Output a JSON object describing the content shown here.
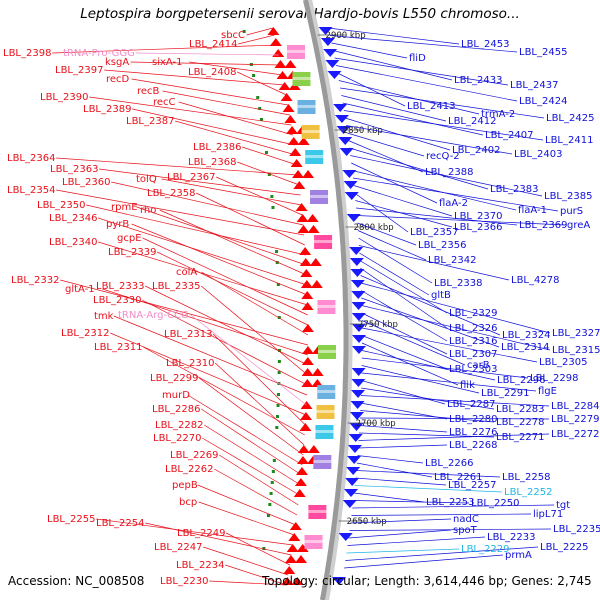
{
  "title": "Leptospira borgpetersenii serovar Hardjo-bovis L550 chromoso...",
  "footer": {
    "accession": "Accession: NC_008508",
    "summary": "Topology: circular; Length: 3,614,446 bp; Genes: 2,745"
  },
  "colors": {
    "left_label": "#e8101a",
    "right_label": "#1010d8",
    "rna_label": "#f08cc8",
    "rna_label_right": "#20b8e8",
    "backbone": "#9a9a9a",
    "forward_gene": "#ff0000",
    "reverse_gene": "#1a1aff",
    "tick": "#1a8a1a"
  },
  "ticks": [
    {
      "label": "2900 kbp"
    },
    {
      "label": "2850 kbp"
    },
    {
      "label": "2800 kbp"
    },
    {
      "label": "2750 kbp"
    },
    {
      "label": "2700 kbp"
    },
    {
      "label": "2650 kbp"
    }
  ],
  "left_labels": [
    {
      "text": "sbcC"
    },
    {
      "text": "LBL_2414"
    },
    {
      "text": "LBL_2398"
    },
    {
      "text": "tRNA-Pro-GGG",
      "rna": true
    },
    {
      "text": "ksgA"
    },
    {
      "text": "sixA-1"
    },
    {
      "text": "LBL_2397"
    },
    {
      "text": "LBL_2408"
    },
    {
      "text": "recD"
    },
    {
      "text": "recB"
    },
    {
      "text": "LBL_2390"
    },
    {
      "text": "recC"
    },
    {
      "text": "LBL_2389"
    },
    {
      "text": "LBL_2387"
    },
    {
      "text": "LBL_2386"
    },
    {
      "text": "LBL_2364"
    },
    {
      "text": "LBL_2368"
    },
    {
      "text": "LBL_2363"
    },
    {
      "text": "tolQ"
    },
    {
      "text": "LBL_2367"
    },
    {
      "text": "LBL_2360"
    },
    {
      "text": "LBL_2354"
    },
    {
      "text": "LBL_2358"
    },
    {
      "text": "LBL_2350"
    },
    {
      "text": "rpmE"
    },
    {
      "text": "rho"
    },
    {
      "text": "LBL_2346"
    },
    {
      "text": "pyrB"
    },
    {
      "text": "LBL_2340"
    },
    {
      "text": "gcpE"
    },
    {
      "text": "LBL_2339"
    },
    {
      "text": "colA"
    },
    {
      "text": "LBL_2332"
    },
    {
      "text": "gltA-1"
    },
    {
      "text": "LBL_2333"
    },
    {
      "text": "LBL_2335"
    },
    {
      "text": "LBL_2330"
    },
    {
      "text": "tmk"
    },
    {
      "text": "tRNA-Arg-CCG",
      "rna": true
    },
    {
      "text": "LBL_2312"
    },
    {
      "text": "LBL_2313"
    },
    {
      "text": "LBL_2311"
    },
    {
      "text": "LBL_2310"
    },
    {
      "text": "LBL_2299"
    },
    {
      "text": "murD"
    },
    {
      "text": "LBL_2286"
    },
    {
      "text": "LBL_2282"
    },
    {
      "text": "LBL_2270"
    },
    {
      "text": "LBL_2269"
    },
    {
      "text": "LBL_2262"
    },
    {
      "text": "pepB"
    },
    {
      "text": "bcp"
    },
    {
      "text": "LBL_2255"
    },
    {
      "text": "LBL_2254"
    },
    {
      "text": "LBL_2249"
    },
    {
      "text": "LBL_2247"
    },
    {
      "text": "LBL_2234"
    },
    {
      "text": "LBL_2230"
    }
  ],
  "right_labels": [
    {
      "text": "LBL_2453"
    },
    {
      "text": "LBL_2455"
    },
    {
      "text": "fliD"
    },
    {
      "text": "LBL_2433"
    },
    {
      "text": "LBL_2437"
    },
    {
      "text": "LBL_2424"
    },
    {
      "text": "LBL_2413"
    },
    {
      "text": "trmA-2"
    },
    {
      "text": "LBL_2425"
    },
    {
      "text": "LBL_2412"
    },
    {
      "text": "LBL_2407"
    },
    {
      "text": "LBL_2411"
    },
    {
      "text": "LBL_2402"
    },
    {
      "text": "LBL_2403"
    },
    {
      "text": "recQ-2"
    },
    {
      "text": "LBL_2388"
    },
    {
      "text": "LBL_2383"
    },
    {
      "text": "LBL_2385"
    },
    {
      "text": "flaA-2"
    },
    {
      "text": "flaA-1"
    },
    {
      "text": "purS"
    },
    {
      "text": "LBL_2370"
    },
    {
      "text": "LBL_2357"
    },
    {
      "text": "LBL_2366"
    },
    {
      "text": "LBL_2369"
    },
    {
      "text": "greA"
    },
    {
      "text": "LBL_2356"
    },
    {
      "text": "LBL_2342"
    },
    {
      "text": "LBL_2338"
    },
    {
      "text": "LBL_4278"
    },
    {
      "text": "gltB"
    },
    {
      "text": "LBL_2329"
    },
    {
      "text": "LBL_2326"
    },
    {
      "text": "LBL_2324"
    },
    {
      "text": "LBL_2327"
    },
    {
      "text": "LBL_2316"
    },
    {
      "text": "LBL_2314"
    },
    {
      "text": "LBL_2315"
    },
    {
      "text": "LBL_2307"
    },
    {
      "text": "carB"
    },
    {
      "text": "LBL_2305"
    },
    {
      "text": "LBL_2303"
    },
    {
      "text": "flik"
    },
    {
      "text": "LBL_2296"
    },
    {
      "text": "LBL_2298"
    },
    {
      "text": "LBL_2291"
    },
    {
      "text": "flgE"
    },
    {
      "text": "LBL_2287"
    },
    {
      "text": "LBL_2283"
    },
    {
      "text": "LBL_2284"
    },
    {
      "text": "LBL_2280"
    },
    {
      "text": "LBL_2278"
    },
    {
      "text": "LBL_2279"
    },
    {
      "text": "LBL_2276"
    },
    {
      "text": "LBL_2271"
    },
    {
      "text": "LBL_2272"
    },
    {
      "text": "LBL_2268"
    },
    {
      "text": "LBL_2266"
    },
    {
      "text": "LBL_2261"
    },
    {
      "text": "LBL_2258"
    },
    {
      "text": "LBL_2257"
    },
    {
      "text": "LBL_2252",
      "rna": true
    },
    {
      "text": "LBL_2253"
    },
    {
      "text": "LBL_2250"
    },
    {
      "text": "tgt"
    },
    {
      "text": "lipL71"
    },
    {
      "text": "nadC"
    },
    {
      "text": "LBL_2235"
    },
    {
      "text": "spoT"
    },
    {
      "text": "LBL_2233"
    },
    {
      "text": "LBL_2229",
      "rna": true
    },
    {
      "text": "LBL_2225"
    },
    {
      "text": "prmA"
    }
  ]
}
